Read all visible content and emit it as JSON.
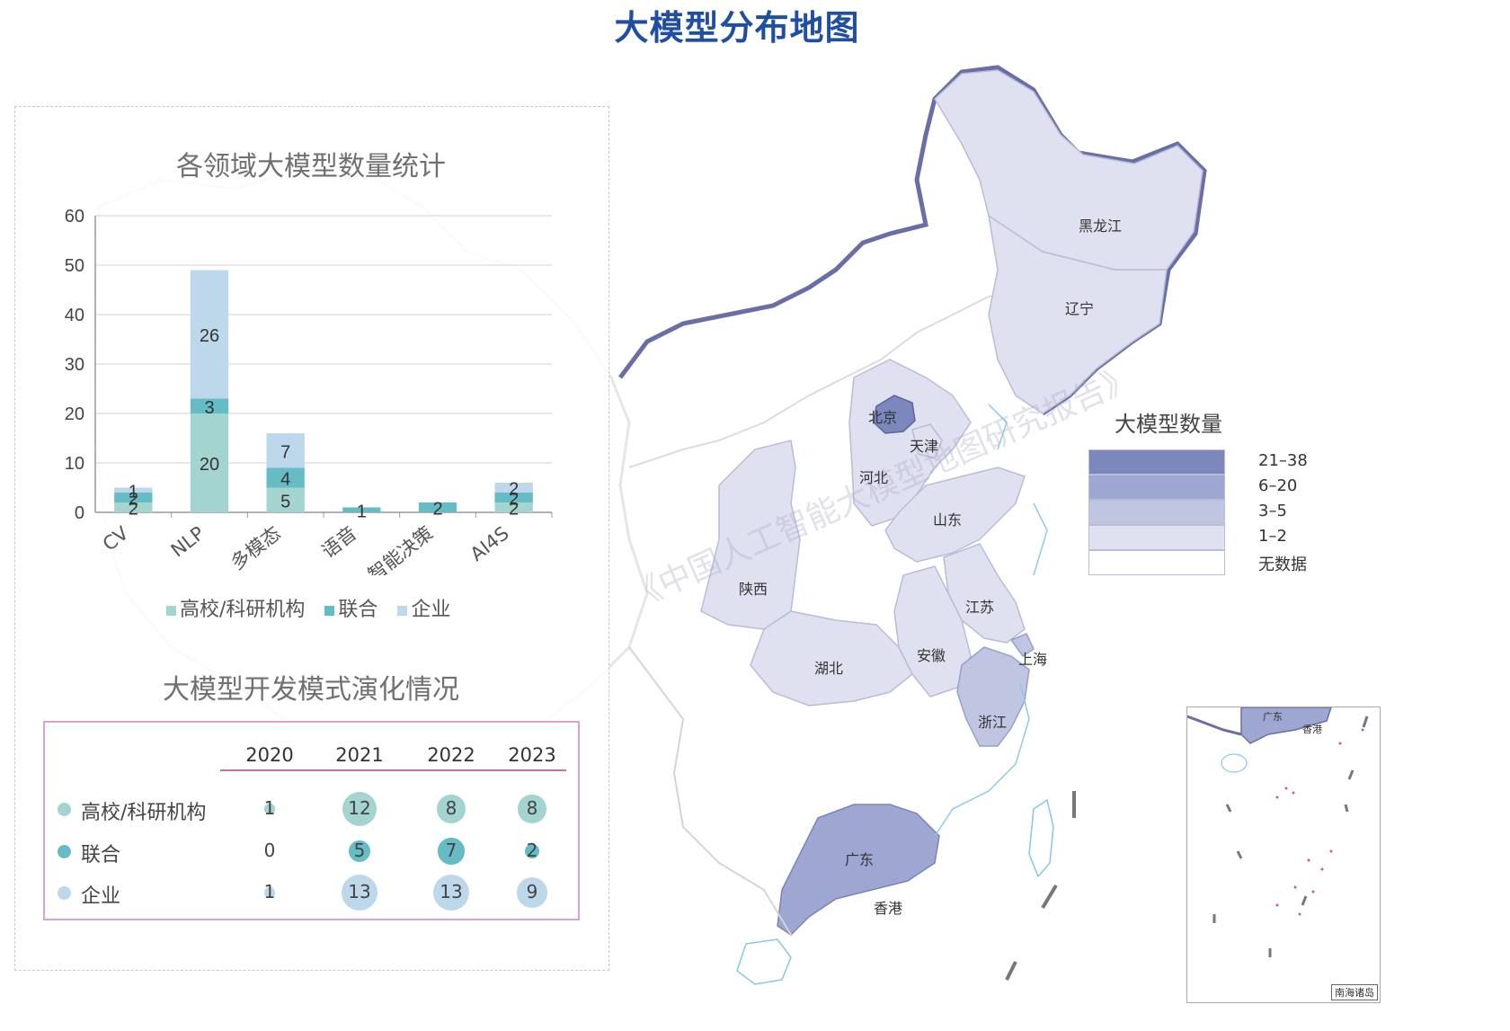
{
  "page_title": "大模型分布地图",
  "watermark": "《中国人工智能大模型地图研究报告》",
  "map": {
    "legend": {
      "title": "大模型数量",
      "items": [
        {
          "label": "21–38",
          "color": "#7b87bd"
        },
        {
          "label": "6–20",
          "color": "#9ea7d2"
        },
        {
          "label": "3–5",
          "color": "#c0c5e2"
        },
        {
          "label": "1–2",
          "color": "#dfe1f0"
        },
        {
          "label": "无数据",
          "color": "#ffffff"
        }
      ]
    },
    "province_labels": {
      "heilongjiang": "黑龙江",
      "liaoning": "辽宁",
      "beijing": "北京",
      "tianjin": "天津",
      "hebei": "河北",
      "shandong": "山东",
      "shaanxi": "陕西",
      "jiangsu": "江苏",
      "shanghai": "上海",
      "hubei": "湖北",
      "anhui": "安徽",
      "zhejiang": "浙江",
      "guangdong": "广东",
      "hongkong": "香港"
    },
    "inset": {
      "caption": "南海诸岛",
      "labels": {
        "guangdong": "广东",
        "hongkong": "香港"
      }
    }
  },
  "bar_chart": {
    "title": "各领域大模型数量统计",
    "legend": [
      "高校/科研机构",
      "联合",
      "企业"
    ]
  },
  "chart_data": {
    "type": "bar",
    "stacked": true,
    "title": "各领域大模型数量统计",
    "categories": [
      "CV",
      "NLP",
      "多模态",
      "语音",
      "智能决策",
      "AI4S"
    ],
    "series": [
      {
        "name": "高校/科研机构",
        "values": [
          2,
          20,
          5,
          0,
          0,
          2
        ],
        "color": "#a3d4cf"
      },
      {
        "name": "联合",
        "values": [
          2,
          3,
          4,
          1,
          2,
          2
        ],
        "color": "#66bcc4"
      },
      {
        "name": "企业",
        "values": [
          1,
          26,
          7,
          0,
          0,
          2
        ],
        "color": "#bcd8ea"
      }
    ],
    "ylim": [
      0,
      60
    ],
    "yticks": [
      0,
      10,
      20,
      30,
      40,
      50,
      60
    ],
    "grid": true,
    "legend_position": "bottom"
  },
  "matrix": {
    "title": "大模型开发模式演化情况",
    "years": [
      "2020",
      "2021",
      "2022",
      "2023"
    ],
    "rows": [
      {
        "label": "高校/科研机构",
        "color": "#a3d4cf",
        "values": [
          1,
          12,
          8,
          8
        ]
      },
      {
        "label": "联合",
        "color": "#66bcc4",
        "values": [
          0,
          5,
          7,
          2
        ]
      },
      {
        "label": "企业",
        "color": "#bcd8ea",
        "values": [
          1,
          13,
          13,
          9
        ]
      }
    ]
  }
}
